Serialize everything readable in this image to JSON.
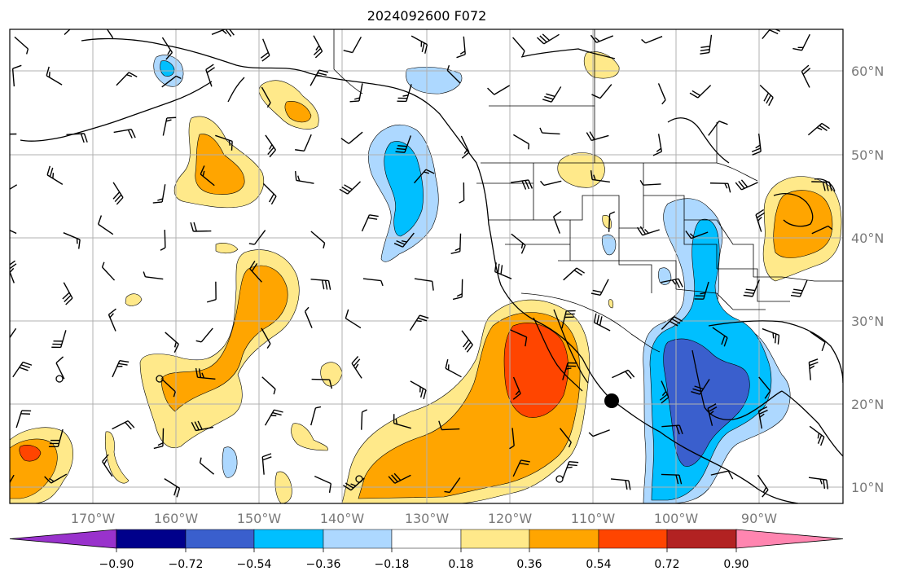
{
  "title": "2024092600 F072",
  "lat_labels": [
    "60°N",
    "50°N",
    "40°N",
    "30°N",
    "20°N",
    "10°N"
  ],
  "lon_labels": [
    "170°W",
    "160°W",
    "150°W",
    "140°W",
    "130°W",
    "120°W",
    "110°W",
    "100°W",
    "90°W"
  ],
  "colorbar": {
    "colors": [
      "#9932cc",
      "#00008b",
      "#3a5fcd",
      "#00bfff",
      "#add8ff",
      "#ffffff",
      "#ffe98a",
      "#ffa500",
      "#ff4500",
      "#b22222",
      "#ff85b0"
    ],
    "tick_labels": [
      "−0.90",
      "−0.72",
      "−0.54",
      "−0.36",
      "−0.18",
      "0.18",
      "0.36",
      "0.54",
      "0.72",
      "0.90"
    ]
  },
  "palette": {
    "pale_yellow": "#ffe98a",
    "orange": "#ffa500",
    "red_orange": "#ff4500",
    "light_blue": "#add8ff",
    "deep_sky": "#00bfff",
    "royal_blue": "#3a5fcd"
  }
}
